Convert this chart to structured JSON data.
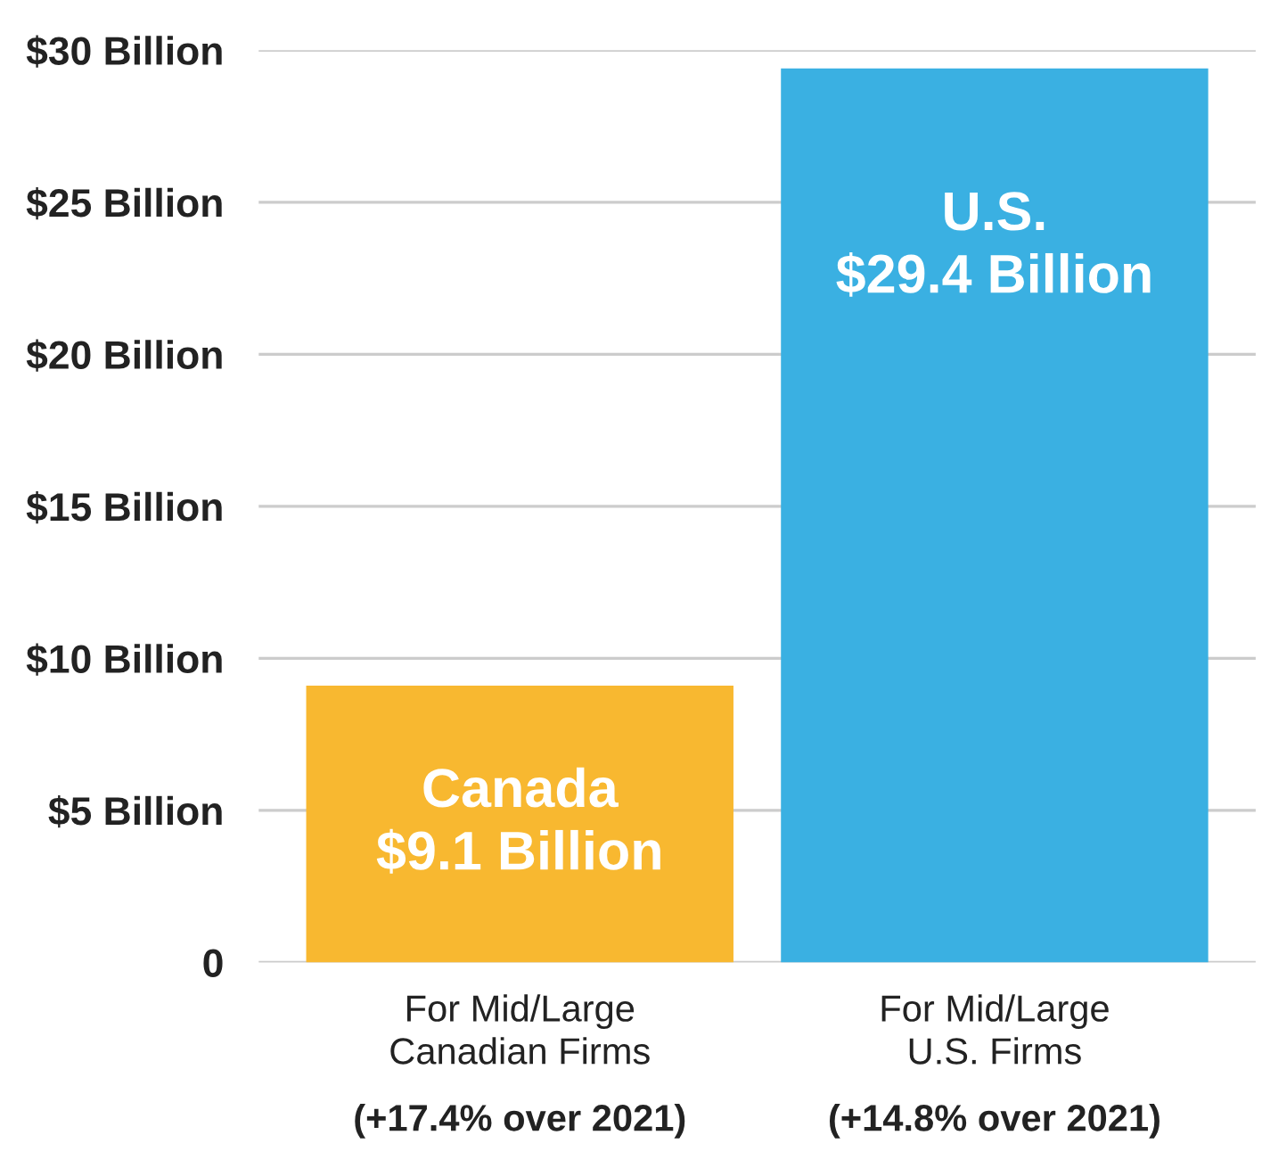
{
  "chart_data": {
    "type": "bar",
    "categories": [
      "For Mid/Large\nCanadian Firms\n(+17.4% over 2021)",
      "For Mid/Large\nU.S. Firms\n(+14.8% over 2021)"
    ],
    "values": [
      9.1,
      29.4
    ],
    "colors": [
      "#f8b830",
      "#3ab0e2"
    ],
    "value_labels": [
      "Canada\n$9.1 Billion",
      "U.S.\n$29.4 Billion"
    ],
    "ylim": [
      0,
      30
    ],
    "yticks": [
      {
        "value": 0,
        "label": "0"
      },
      {
        "value": 5,
        "label": "$5 Billion"
      },
      {
        "value": 10,
        "label": "$10 Billion"
      },
      {
        "value": 15,
        "label": "$15 Billion"
      },
      {
        "value": 20,
        "label": "$20 Billion"
      },
      {
        "value": 25,
        "label": "$25 Billion"
      },
      {
        "value": 30,
        "label": "$30 Billion"
      }
    ],
    "grid": "y"
  }
}
